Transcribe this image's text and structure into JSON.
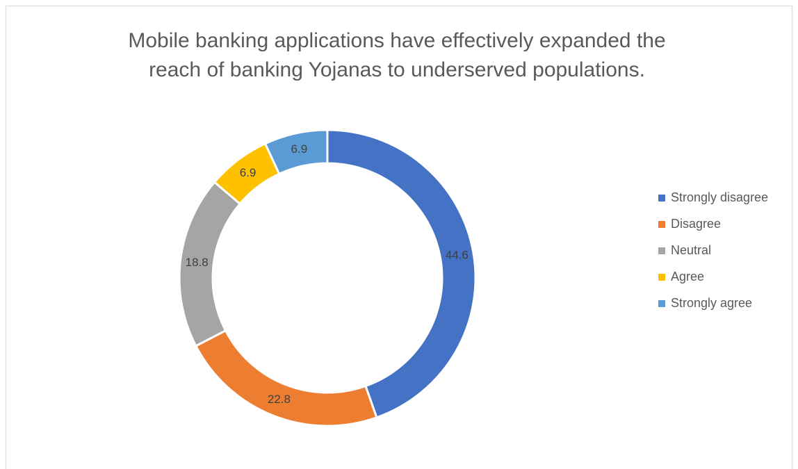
{
  "chart_data": {
    "type": "pie",
    "title": [
      "Mobile banking applications have effectively expanded the",
      "reach of banking Yojanas to underserved populations."
    ],
    "categories": [
      "Strongly disagree",
      "Disagree",
      "Neutral",
      "Agree",
      "Strongly agree"
    ],
    "values": [
      44.6,
      22.8,
      18.8,
      6.9,
      6.9
    ],
    "colors": [
      "#4472c4",
      "#ed7d31",
      "#a5a5a5",
      "#ffc000",
      "#5b9bd5"
    ],
    "donut": true,
    "legend": "right"
  }
}
